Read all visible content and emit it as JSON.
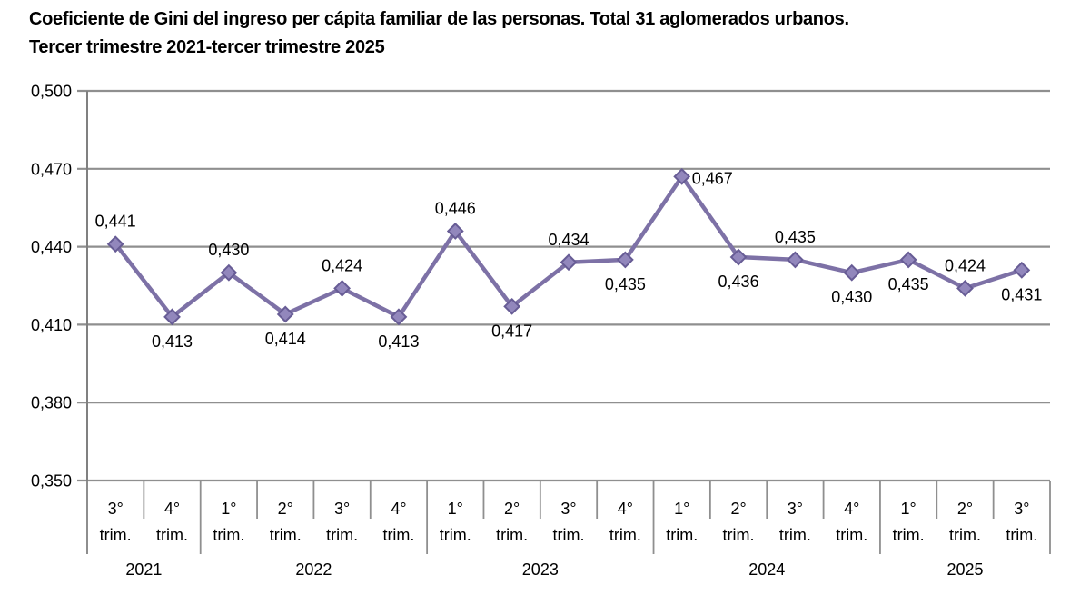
{
  "title": {
    "line1": "Coeficiente de Gini del ingreso per cápita familiar de las personas. Total 31 aglomerados urbanos.",
    "line2": "Tercer trimestre 2021-tercer trimestre 2025"
  },
  "chart_data": {
    "type": "line",
    "title": "Coeficiente de Gini del ingreso per cápita familiar de las personas. Total 31 aglomerados urbanos. Tercer trimestre 2021-tercer trimestre 2025",
    "series": [
      {
        "name": "Coeficiente de Gini",
        "values": [
          0.441,
          0.413,
          0.43,
          0.414,
          0.424,
          0.413,
          0.446,
          0.417,
          0.434,
          0.435,
          0.467,
          0.436,
          0.435,
          0.43,
          0.435,
          0.424,
          0.431
        ],
        "value_labels": [
          "0,441",
          "0,413",
          "0,430",
          "0,414",
          "0,424",
          "0,413",
          "0,446",
          "0,417",
          "0,434",
          "0,435",
          "0,467",
          "0,436",
          "0,435",
          "0,430",
          "0,435",
          "0,424",
          "0,431"
        ],
        "label_positions": [
          "above",
          "below",
          "above",
          "below",
          "above",
          "below",
          "above",
          "below",
          "above",
          "below",
          "right",
          "below",
          "above",
          "below",
          "below",
          "above",
          "below"
        ]
      }
    ],
    "x_quarters": [
      "3°",
      "4°",
      "1°",
      "2°",
      "3°",
      "4°",
      "1°",
      "2°",
      "3°",
      "4°",
      "1°",
      "2°",
      "3°",
      "4°",
      "1°",
      "2°",
      "3°"
    ],
    "x_quarter_suffix": "trim.",
    "year_groups": [
      {
        "label": "2021",
        "count": 2
      },
      {
        "label": "2022",
        "count": 4
      },
      {
        "label": "2023",
        "count": 4
      },
      {
        "label": "2024",
        "count": 4
      },
      {
        "label": "2025",
        "count": 3
      }
    ],
    "y_axis": {
      "tick_labels": [
        "0,500",
        "0,470",
        "0,440",
        "0,410",
        "0,380",
        "0,350"
      ],
      "tick_values": [
        0.5,
        0.47,
        0.44,
        0.41,
        0.38,
        0.35
      ],
      "min": 0.35,
      "max": 0.5
    },
    "grid": "horizontal",
    "legend": "none",
    "colors": {
      "line": "#7D71A6",
      "marker_fill": "#9287BC",
      "marker_stroke": "#675C95",
      "grid": "#8F8F8F",
      "axis": "#808080",
      "text": "#000000"
    }
  }
}
